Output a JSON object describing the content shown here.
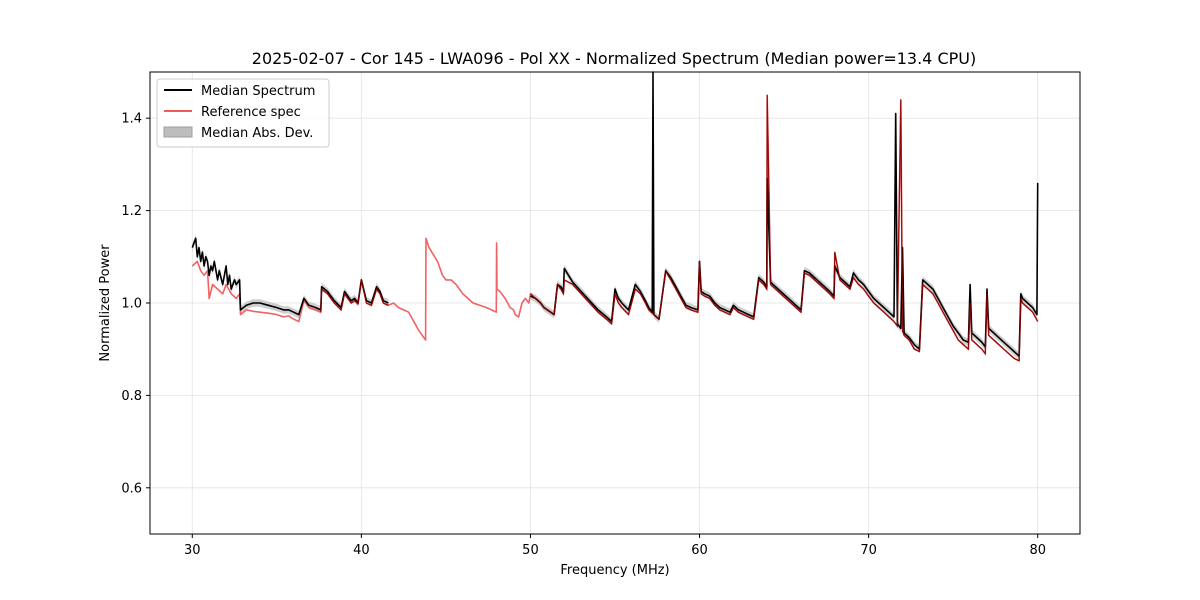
{
  "chart_data": {
    "type": "line",
    "title": "2025-02-07 - Cor 145 - LWA096 - Pol XX - Normalized Spectrum (Median power=13.4 CPU)",
    "xlabel": "Frequency (MHz)",
    "ylabel": "Normalized Power",
    "xlim": [
      27.5,
      82.5
    ],
    "ylim": [
      0.5,
      1.5
    ],
    "xticks": [
      30,
      40,
      50,
      60,
      70,
      80
    ],
    "yticks": [
      0.6,
      0.8,
      1.0,
      1.2,
      1.4
    ],
    "xtick_labels": [
      "30",
      "40",
      "50",
      "60",
      "70",
      "80"
    ],
    "ytick_labels": [
      "0.6",
      "0.8",
      "1.0",
      "1.2",
      "1.4"
    ],
    "grid": true,
    "legend": {
      "placement": "top-left",
      "entries": [
        {
          "label": "Median Spectrum",
          "color": "#000000",
          "kind": "line"
        },
        {
          "label": "Reference spec",
          "color": "#f05a5a",
          "kind": "line"
        },
        {
          "label": "Median Abs. Dev.",
          "color": "#bdbdbd",
          "kind": "patch"
        }
      ]
    },
    "series": [
      {
        "name": "Reference spec",
        "color": "#f05a5a",
        "x": [
          30.0,
          30.3,
          30.5,
          30.7,
          30.9,
          31.0,
          31.2,
          31.5,
          31.8,
          32.0,
          32.3,
          32.6,
          32.8,
          32.85,
          33.2,
          33.6,
          34.0,
          34.5,
          35.0,
          35.4,
          35.7,
          36.0,
          36.3,
          36.6,
          36.9,
          37.3,
          37.6,
          37.65,
          38.0,
          38.4,
          38.8,
          39.0,
          39.2,
          39.4,
          39.6,
          39.8,
          40.0,
          40.3,
          40.6,
          40.9,
          41.1,
          41.3,
          41.6,
          41.9,
          42.2,
          42.5,
          42.8,
          43.1,
          43.4,
          43.6,
          43.8,
          43.82,
          44.0,
          44.5,
          44.8,
          45.0,
          45.3,
          45.6,
          46.0,
          46.3,
          46.6,
          47.0,
          47.4,
          47.7,
          47.98,
          48.0,
          48.02,
          48.2,
          48.5,
          48.8,
          49.0,
          49.1,
          49.3,
          49.5,
          49.7,
          49.9,
          50.0,
          50.3,
          50.6,
          50.8,
          51.0,
          51.2,
          51.4,
          51.6,
          51.8,
          51.95,
          52.0,
          52.5,
          53.0,
          53.5,
          54.0,
          54.5,
          54.8,
          55.0,
          55.2,
          55.4,
          55.8,
          56.2,
          56.5,
          56.8,
          57.0,
          57.3,
          57.6,
          58.0,
          58.3,
          58.6,
          58.9,
          59.2,
          59.5,
          59.9,
          60.0,
          60.1,
          60.3,
          60.6,
          60.9,
          61.2,
          61.5,
          61.8,
          62.0,
          62.3,
          62.6,
          62.9,
          63.2,
          63.5,
          63.8,
          63.98,
          64.0,
          64.2,
          64.5,
          64.8,
          65.1,
          65.4,
          65.7,
          66.0,
          66.2,
          66.5,
          66.8,
          67.1,
          67.4,
          67.7,
          67.95,
          68.0,
          68.3,
          68.6,
          68.9,
          69.1,
          69.4,
          69.7,
          70.0,
          70.3,
          70.6,
          70.9,
          71.2,
          71.5,
          71.7,
          71.9,
          72.0,
          72.1,
          72.4,
          72.7,
          73.0,
          73.2,
          73.5,
          73.8,
          74.1,
          74.4,
          74.7,
          75.0,
          75.3,
          75.6,
          75.9,
          76.0,
          76.1,
          76.4,
          76.7,
          76.9,
          77.0,
          77.1,
          77.4,
          77.7,
          78.0,
          78.3,
          78.6,
          78.9,
          79.0,
          79.1,
          79.4,
          79.7,
          80.0
        ],
        "y": [
          1.08,
          1.09,
          1.07,
          1.06,
          1.07,
          1.01,
          1.04,
          1.03,
          1.02,
          1.04,
          1.02,
          1.01,
          1.02,
          0.975,
          0.985,
          0.982,
          0.98,
          0.978,
          0.975,
          0.97,
          0.972,
          0.965,
          0.96,
          1.005,
          0.99,
          0.985,
          0.98,
          1.03,
          1.02,
          1.0,
          0.985,
          1.02,
          1.01,
          1.0,
          1.005,
          0.998,
          1.05,
          1.0,
          0.995,
          1.03,
          1.02,
          1.0,
          0.995,
          1.0,
          0.99,
          0.985,
          0.98,
          0.96,
          0.94,
          0.93,
          0.92,
          1.14,
          1.12,
          1.09,
          1.06,
          1.05,
          1.05,
          1.04,
          1.02,
          1.01,
          1.0,
          0.995,
          0.99,
          0.985,
          0.98,
          1.13,
          1.03,
          1.025,
          1.01,
          0.99,
          0.985,
          0.975,
          0.97,
          1.0,
          1.01,
          1.0,
          1.02,
          1.01,
          1.0,
          0.99,
          0.985,
          0.98,
          0.975,
          1.04,
          1.03,
          1.02,
          1.05,
          1.04,
          1.02,
          1.0,
          0.98,
          0.965,
          0.955,
          1.02,
          1.0,
          0.99,
          0.975,
          1.03,
          1.02,
          1.0,
          0.985,
          0.975,
          0.965,
          1.07,
          1.05,
          1.03,
          1.01,
          0.99,
          0.985,
          0.98,
          1.09,
          1.02,
          1.015,
          1.01,
          0.995,
          0.985,
          0.98,
          0.975,
          0.99,
          0.98,
          0.975,
          0.97,
          0.965,
          1.05,
          1.04,
          1.03,
          1.45,
          1.04,
          1.03,
          1.02,
          1.01,
          1.0,
          0.99,
          0.98,
          1.065,
          1.06,
          1.05,
          1.04,
          1.03,
          1.02,
          1.01,
          1.11,
          1.05,
          1.04,
          1.03,
          1.055,
          1.04,
          1.03,
          1.015,
          1.0,
          0.99,
          0.98,
          0.97,
          0.96,
          0.95,
          1.44,
          0.94,
          0.93,
          0.92,
          0.9,
          0.895,
          1.04,
          1.03,
          1.02,
          1.0,
          0.98,
          0.96,
          0.94,
          0.92,
          0.91,
          0.9,
          1.0,
          0.92,
          0.91,
          0.9,
          0.89,
          1.02,
          0.93,
          0.92,
          0.91,
          0.9,
          0.89,
          0.88,
          0.875,
          1.01,
          1.0,
          0.99,
          0.98,
          0.96
        ]
      },
      {
        "name": "Median Spectrum",
        "color": "#000000",
        "x": [
          30.0,
          30.1,
          30.2,
          30.3,
          30.4,
          30.5,
          30.6,
          30.7,
          30.8,
          30.9,
          31.0,
          31.1,
          31.2,
          31.3,
          31.5,
          31.6,
          31.8,
          31.9,
          32.0,
          32.1,
          32.2,
          32.3,
          32.5,
          32.6,
          32.8,
          32.85,
          33.2,
          33.6,
          34.0,
          34.5,
          35.0,
          35.4,
          35.7,
          36.0,
          36.3,
          36.6,
          36.9,
          37.3,
          37.6,
          37.65,
          38.0,
          38.4,
          38.8,
          39.0,
          39.2,
          39.4,
          39.6,
          39.8,
          40.0,
          40.3,
          40.6,
          40.9,
          41.1,
          41.3,
          41.6
        ],
        "y": [
          1.12,
          1.13,
          1.14,
          1.1,
          1.12,
          1.09,
          1.11,
          1.08,
          1.1,
          1.09,
          1.06,
          1.08,
          1.07,
          1.09,
          1.05,
          1.07,
          1.04,
          1.06,
          1.08,
          1.04,
          1.06,
          1.03,
          1.05,
          1.04,
          1.05,
          0.985,
          0.995,
          1.0,
          1.0,
          0.995,
          0.99,
          0.985,
          0.985,
          0.98,
          0.975,
          1.01,
          0.995,
          0.99,
          0.985,
          1.035,
          1.025,
          1.005,
          0.99,
          1.025,
          1.015,
          1.005,
          1.01,
          1.0,
          1.05,
          1.005,
          1.0,
          1.035,
          1.025,
          1.005,
          1.0
        ]
      },
      {
        "name": "Median Spectrum",
        "color": "#000000",
        "x": [
          50.0,
          50.3,
          50.6,
          50.8,
          51.0,
          51.2,
          51.4,
          51.6,
          51.8,
          51.95,
          52.0,
          52.5,
          53.0,
          53.5,
          54.0,
          54.5,
          54.8,
          55.0,
          55.2,
          55.4,
          55.8,
          56.2,
          56.5,
          56.8,
          57.0,
          57.2,
          57.25,
          57.3,
          57.6,
          58.0,
          58.3,
          58.6,
          58.9,
          59.2,
          59.5,
          59.9,
          60.0,
          60.1,
          60.3,
          60.6,
          60.9,
          61.2,
          61.5,
          61.8,
          62.0,
          62.3,
          62.6,
          62.9,
          63.2,
          63.5,
          63.8,
          63.98,
          64.0,
          64.2,
          64.5,
          64.8,
          65.1,
          65.4,
          65.7,
          66.0,
          66.2,
          66.5,
          66.8,
          67.1,
          67.4,
          67.7,
          67.95,
          68.0,
          68.3,
          68.6,
          68.9,
          69.1,
          69.4,
          69.7,
          70.0,
          70.3,
          70.6,
          70.9,
          71.2,
          71.5,
          71.6,
          71.7,
          71.9,
          72.0,
          72.1,
          72.4,
          72.7,
          73.0,
          73.2,
          73.5,
          73.8,
          74.1,
          74.4,
          74.7,
          75.0,
          75.3,
          75.6,
          75.9,
          76.0,
          76.1,
          76.4,
          76.7,
          76.9,
          77.0,
          77.1,
          77.4,
          77.7,
          78.0,
          78.3,
          78.6,
          78.9,
          79.0,
          79.1,
          79.4,
          79.7,
          79.95,
          80.0
        ],
        "y": [
          1.015,
          1.01,
          1.0,
          0.99,
          0.985,
          0.98,
          0.975,
          1.04,
          1.035,
          1.025,
          1.075,
          1.045,
          1.025,
          1.005,
          0.985,
          0.97,
          0.96,
          1.03,
          1.01,
          1.0,
          0.985,
          1.04,
          1.025,
          1.005,
          0.99,
          0.98,
          1.5,
          0.975,
          0.965,
          1.07,
          1.055,
          1.035,
          1.015,
          0.995,
          0.99,
          0.985,
          1.09,
          1.025,
          1.02,
          1.015,
          1.0,
          0.99,
          0.985,
          0.98,
          0.995,
          0.985,
          0.98,
          0.975,
          0.97,
          1.055,
          1.045,
          1.035,
          1.27,
          1.045,
          1.035,
          1.025,
          1.015,
          1.005,
          0.995,
          0.985,
          1.07,
          1.065,
          1.055,
          1.045,
          1.035,
          1.025,
          1.015,
          1.08,
          1.055,
          1.045,
          1.035,
          1.065,
          1.05,
          1.04,
          1.025,
          1.01,
          1.0,
          0.99,
          0.98,
          0.97,
          1.41,
          0.955,
          0.945,
          1.12,
          0.935,
          0.925,
          0.91,
          0.9,
          1.05,
          1.04,
          1.03,
          1.01,
          0.99,
          0.97,
          0.95,
          0.935,
          0.92,
          0.915,
          1.04,
          0.935,
          0.925,
          0.915,
          0.905,
          1.03,
          0.945,
          0.935,
          0.925,
          0.915,
          0.905,
          0.895,
          0.885,
          1.02,
          1.01,
          1.0,
          0.99,
          0.975,
          1.26
        ]
      }
    ]
  }
}
